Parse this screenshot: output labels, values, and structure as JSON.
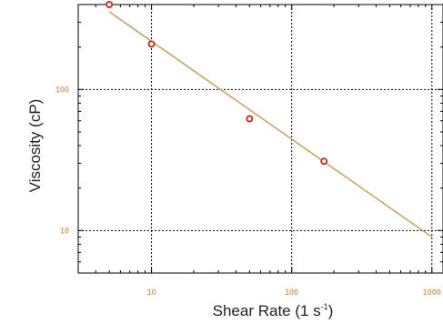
{
  "chart_data": {
    "type": "scatter",
    "xlabel_main": "Shear Rate (1 s",
    "xlabel_sup": "-1",
    "xlabel_end": ")",
    "ylabel": "Viscosity (cP)",
    "x_scale": "log",
    "y_scale": "log",
    "xlim": [
      3,
      1200
    ],
    "ylim": [
      5,
      400
    ],
    "x_ticks": [
      {
        "value": 10,
        "label": "10"
      },
      {
        "value": 100,
        "label": "100"
      },
      {
        "value": 1000,
        "label": "1000"
      }
    ],
    "y_ticks": [
      {
        "value": 10,
        "label": "10"
      },
      {
        "value": 100,
        "label": "100"
      }
    ],
    "grid": true,
    "points": {
      "x": [
        5,
        10,
        50,
        170
      ],
      "y": [
        400,
        210,
        62,
        31
      ]
    },
    "fit_line": {
      "x": [
        5,
        1000
      ],
      "y": [
        355,
        9
      ]
    },
    "colors": {
      "marker": "#c0392b",
      "fit_line": "#c9a062",
      "tick_label": "#d4a56a",
      "grid": "#000000"
    }
  }
}
